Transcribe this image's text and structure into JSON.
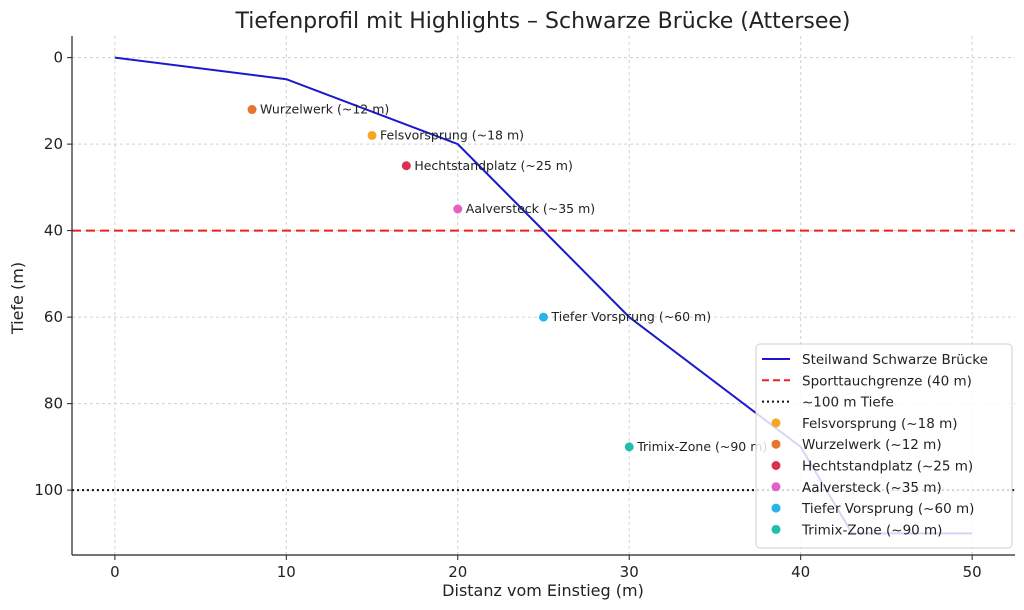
{
  "chart_data": {
    "type": "line",
    "title": "Tiefenprofil mit Highlights – Schwarze Brücke (Attersee)",
    "xlabel": "Distanz vom Einstieg (m)",
    "ylabel": "Tiefe (m)",
    "xlim": [
      -2.5,
      52.5
    ],
    "ylim": [
      115,
      -5
    ],
    "y_inverted": true,
    "x_ticks": [
      0,
      10,
      20,
      30,
      40,
      50
    ],
    "y_ticks": [
      0,
      20,
      40,
      60,
      80,
      100
    ],
    "grid": true,
    "legend_position": "lower-right",
    "series": [
      {
        "name": "Steilwand Schwarze Brücke",
        "color": "#1a1acc",
        "points": [
          [
            0,
            0
          ],
          [
            10,
            5
          ],
          [
            20,
            20
          ],
          [
            25,
            40
          ],
          [
            30,
            60
          ],
          [
            40,
            90
          ],
          [
            43,
            110
          ],
          [
            50,
            110
          ]
        ]
      }
    ],
    "reference_lines": [
      {
        "name": "Sporttauchgrenze (40 m)",
        "y": 40,
        "color": "#e8231c",
        "style": "dashed"
      },
      {
        "name": "~100 m Tiefe",
        "y": 100,
        "color": "#111111",
        "style": "dotted"
      }
    ],
    "highlights": [
      {
        "name": "Felsvorsprung (~18 m)",
        "x": 15,
        "y": 18,
        "color": "#f5a623"
      },
      {
        "name": "Wurzelwerk (~12 m)",
        "x": 8,
        "y": 12,
        "color": "#e8732c"
      },
      {
        "name": "Hechtstandplatz (~25 m)",
        "x": 17,
        "y": 25,
        "color": "#dc3050"
      },
      {
        "name": "Aalversteck (~35 m)",
        "x": 20,
        "y": 35,
        "color": "#e45fc6"
      },
      {
        "name": "Tiefer Vorsprung (~60 m)",
        "x": 25,
        "y": 60,
        "color": "#28b4ea"
      },
      {
        "name": "Trimix-Zone (~90 m)",
        "x": 30,
        "y": 90,
        "color": "#1fbfae"
      }
    ]
  }
}
